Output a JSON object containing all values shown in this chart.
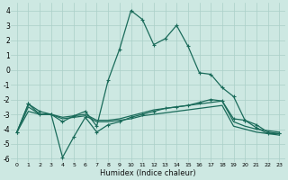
{
  "xlabel": "Humidex (Indice chaleur)",
  "ylabel": "",
  "xlim": [
    -0.5,
    23.5
  ],
  "ylim": [
    -6.2,
    4.5
  ],
  "bg_color": "#cde8e2",
  "grid_color": "#aacfc8",
  "line_color": "#1a6b5a",
  "lines": [
    {
      "x": [
        0,
        1,
        2,
        3,
        4,
        5,
        6,
        7,
        8,
        9,
        10,
        11,
        12,
        13,
        14,
        15,
        16,
        17,
        18,
        19,
        20,
        21,
        22,
        23
      ],
      "y": [
        -4.2,
        -2.3,
        -2.8,
        -3.0,
        -3.5,
        -3.1,
        -2.8,
        -3.8,
        -0.7,
        1.4,
        4.0,
        3.4,
        1.7,
        2.1,
        3.0,
        1.6,
        -0.2,
        -0.3,
        -1.2,
        -1.8,
        -3.4,
        -3.7,
        -4.2,
        -4.3
      ],
      "marker": "+",
      "lw": 0.9
    },
    {
      "x": [
        0,
        1,
        2,
        3,
        4,
        5,
        6,
        7,
        8,
        9,
        10,
        11,
        12,
        13,
        14,
        15,
        16,
        17,
        18,
        19,
        20,
        21,
        22,
        23
      ],
      "y": [
        -4.2,
        -2.3,
        -3.0,
        -3.0,
        -5.9,
        -4.5,
        -3.2,
        -4.2,
        -3.7,
        -3.5,
        -3.2,
        -3.0,
        -2.8,
        -2.6,
        -2.5,
        -2.4,
        -2.2,
        -2.0,
        -2.1,
        -3.3,
        -3.4,
        -3.9,
        -4.3,
        -4.3
      ],
      "marker": "+",
      "lw": 0.9
    },
    {
      "x": [
        0,
        1,
        2,
        3,
        4,
        5,
        6,
        7,
        8,
        9,
        10,
        11,
        12,
        13,
        14,
        15,
        16,
        17,
        18,
        19,
        20,
        21,
        22,
        23
      ],
      "y": [
        -4.2,
        -2.8,
        -3.0,
        -3.0,
        -3.3,
        -3.2,
        -3.1,
        -3.5,
        -3.5,
        -3.4,
        -3.3,
        -3.1,
        -3.0,
        -2.9,
        -2.8,
        -2.7,
        -2.6,
        -2.5,
        -2.4,
        -3.8,
        -4.0,
        -4.2,
        -4.3,
        -4.4
      ],
      "marker": null,
      "lw": 0.9
    },
    {
      "x": [
        0,
        1,
        2,
        3,
        4,
        5,
        6,
        7,
        8,
        9,
        10,
        11,
        12,
        13,
        14,
        15,
        16,
        17,
        18,
        19,
        20,
        21,
        22,
        23
      ],
      "y": [
        -4.2,
        -2.5,
        -3.0,
        -3.0,
        -3.2,
        -3.1,
        -3.0,
        -3.4,
        -3.4,
        -3.3,
        -3.1,
        -2.9,
        -2.7,
        -2.6,
        -2.5,
        -2.4,
        -2.3,
        -2.2,
        -2.1,
        -3.5,
        -3.8,
        -4.0,
        -4.1,
        -4.2
      ],
      "marker": null,
      "lw": 0.9
    }
  ],
  "yticks": [
    -6,
    -5,
    -4,
    -3,
    -2,
    -1,
    0,
    1,
    2,
    3,
    4
  ],
  "xticks": [
    0,
    1,
    2,
    3,
    4,
    5,
    6,
    7,
    8,
    9,
    10,
    11,
    12,
    13,
    14,
    15,
    16,
    17,
    18,
    19,
    20,
    21,
    22,
    23
  ],
  "xtick_labels": [
    "0",
    "1",
    "2",
    "3",
    "4",
    "5",
    "6",
    "7",
    "8",
    "9",
    "10",
    "11",
    "12",
    "13",
    "14",
    "15",
    "16",
    "17",
    "18",
    "19",
    "20",
    "21",
    "22",
    "23"
  ]
}
